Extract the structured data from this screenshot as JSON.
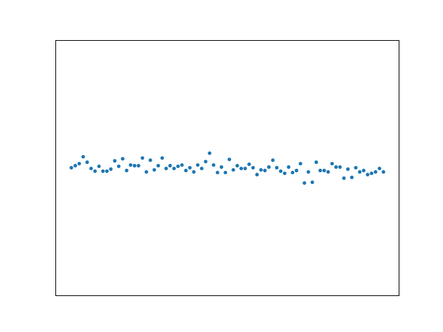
{
  "chart_data": {
    "type": "scatter",
    "x": [
      0,
      1,
      2,
      3,
      4,
      5,
      6,
      7,
      8,
      9,
      10,
      11,
      12,
      13,
      14,
      15,
      16,
      17,
      18,
      19,
      20,
      21,
      22,
      23,
      24,
      25,
      26,
      27,
      28,
      29,
      30,
      31,
      32,
      33,
      34,
      35,
      36,
      37,
      38,
      39,
      40,
      41,
      42,
      43,
      44,
      45,
      46,
      47,
      48,
      49,
      50,
      51,
      52,
      53,
      54,
      55,
      56,
      57,
      58,
      59,
      60,
      61,
      62,
      63,
      64,
      65,
      66,
      67,
      68,
      69,
      70,
      71,
      72,
      73,
      74,
      75,
      76,
      77,
      78,
      79
    ],
    "series": [
      {
        "color": "#1f77b4",
        "values": [
          0.003,
          0.019,
          0.035,
          0.089,
          0.046,
          -0.003,
          -0.024,
          0.014,
          -0.024,
          -0.024,
          -0.008,
          0.057,
          0.014,
          0.073,
          -0.019,
          0.024,
          0.019,
          0.019,
          0.079,
          -0.03,
          0.062,
          -0.014,
          0.019,
          0.079,
          -0.003,
          0.019,
          -0.003,
          0.014,
          0.024,
          -0.019,
          0.003,
          -0.03,
          0.024,
          -0.003,
          0.051,
          0.117,
          0.024,
          -0.035,
          0.008,
          -0.035,
          0.068,
          -0.014,
          0.019,
          -0.003,
          -0.003,
          0.03,
          0.003,
          -0.051,
          -0.014,
          -0.019,
          0.008,
          0.062,
          0.003,
          -0.024,
          -0.041,
          0.008,
          -0.035,
          -0.019,
          0.035,
          -0.117,
          -0.03,
          -0.111,
          0.046,
          -0.019,
          -0.019,
          -0.03,
          0.035,
          0.008,
          0.008,
          -0.079,
          -0.008,
          -0.073,
          0.003,
          -0.03,
          -0.019,
          -0.051,
          -0.041,
          -0.03,
          -0.003,
          -0.03
        ]
      }
    ],
    "xlim": [
      -3.95,
      82.95
    ],
    "ylim": [
      -1,
      1
    ]
  }
}
